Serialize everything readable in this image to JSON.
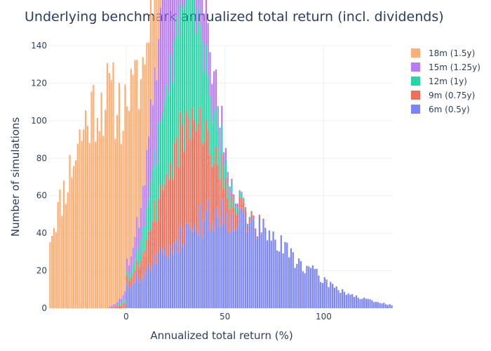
{
  "chart_data": {
    "type": "bar",
    "barmode": "stack",
    "title": "Underlying benchmark annualized total return (incl. dividends)",
    "xlabel": "Annualized total return (%)",
    "ylabel": "Number of simulations",
    "xlim": [
      -39,
      135
    ],
    "ylim": [
      0,
      140
    ],
    "xticks": [
      0,
      50,
      100
    ],
    "yticks": [
      0,
      20,
      40,
      60,
      80,
      100,
      120,
      140
    ],
    "grid": true,
    "legend_position": "right",
    "series": [
      {
        "name": "18m (1.5y)",
        "color": "#FFA15A",
        "center": -11,
        "spread": 19,
        "amplitude": 112,
        "seed": 11
      },
      {
        "name": "15m (1.25y)",
        "color": "#AB63FA",
        "center": 26,
        "spread": 11,
        "amplitude": 78,
        "seed": 23
      },
      {
        "name": "12m (1y)",
        "color": "#00CC96",
        "center": 29,
        "spread": 11,
        "amplitude": 68,
        "seed": 37
      },
      {
        "name": "9m (0.75y)",
        "color": "#EF553B",
        "center": 31,
        "spread": 13,
        "amplitude": 56,
        "seed": 53
      },
      {
        "name": "6m (0.5y)",
        "color": "#636EFA",
        "center": 48,
        "spread": 28,
        "amplitude": 50,
        "seed": 71
      }
    ]
  }
}
